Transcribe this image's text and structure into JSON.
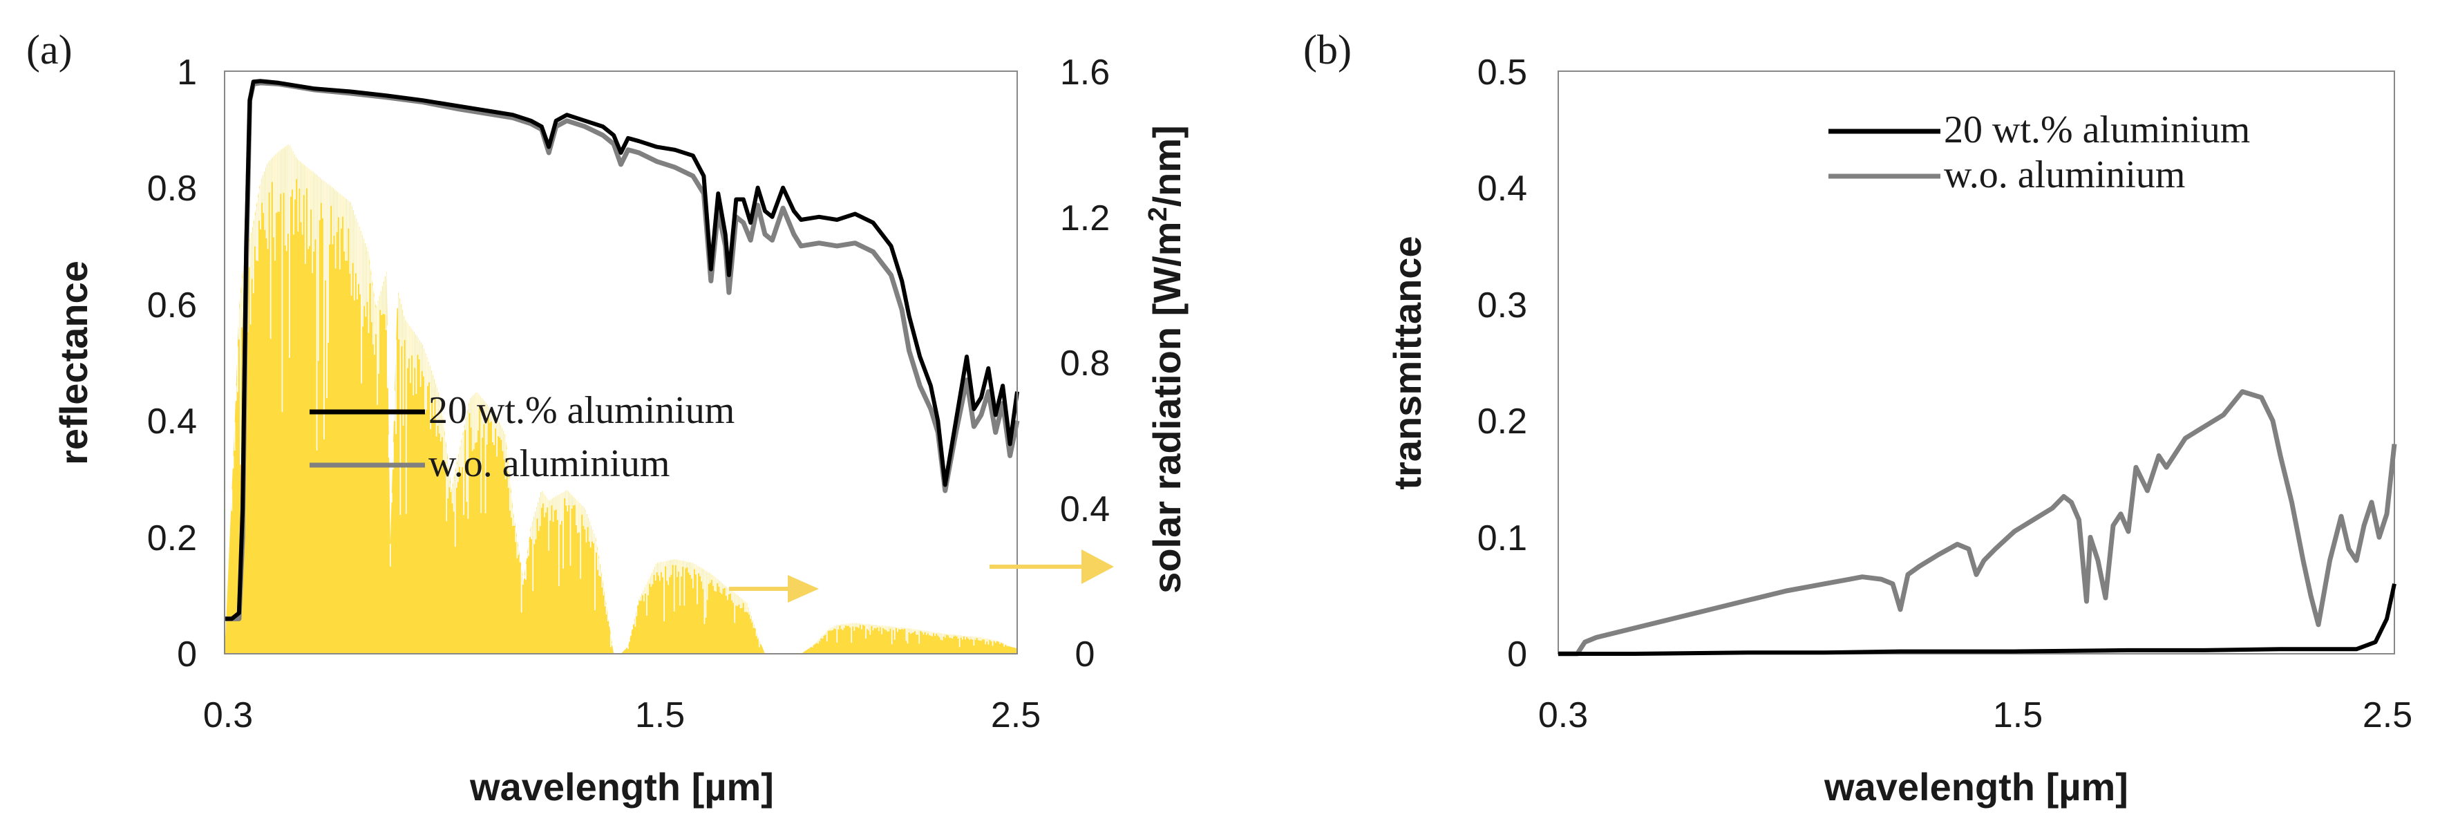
{
  "figure": {
    "background": "#ffffff",
    "colors": {
      "series_20wt": "#000000",
      "series_wo": "#808080",
      "solar": "#fedb3f",
      "arrow": "#f7d45d",
      "axis_text": "#1a1a1a",
      "frame": "#888888"
    }
  },
  "chart_data": [
    {
      "panel": "(a)",
      "type": "line",
      "xlabel": "wavelength [µm]",
      "ylabel": "reflectance",
      "y2label": "solar radiation [W/m²/nm]",
      "y2label_main": "solar radiation [W/m",
      "y2label_sup": "2",
      "y2label_tail": "/nm]",
      "xlim": [
        0.3,
        2.5
      ],
      "ylim": [
        0,
        1
      ],
      "y2lim": [
        0,
        1.6
      ],
      "xticks": [
        0.3,
        1.5,
        2.5
      ],
      "xtick_labels": [
        "0.3",
        "1.5",
        "2.5"
      ],
      "yticks": [
        0,
        0.2,
        0.4,
        0.6,
        0.8,
        1
      ],
      "ytick_labels": [
        "0",
        "0.2",
        "0.4",
        "0.6",
        "0.8",
        "1"
      ],
      "y2ticks": [
        0,
        0.4,
        0.8,
        1.2,
        1.6
      ],
      "y2tick_labels": [
        "0",
        "0.4",
        "0.8",
        "1.2",
        "1.6"
      ],
      "legend": [
        "20 wt.% aluminium",
        "w.o. aluminium"
      ],
      "legend_position": "center-left",
      "series": [
        {
          "name": "20 wt.% aluminium",
          "color": "#000000",
          "x": [
            0.3,
            0.32,
            0.34,
            0.35,
            0.36,
            0.37,
            0.38,
            0.4,
            0.45,
            0.55,
            0.65,
            0.75,
            0.85,
            0.95,
            1.05,
            1.1,
            1.15,
            1.18,
            1.2,
            1.22,
            1.25,
            1.3,
            1.35,
            1.38,
            1.4,
            1.42,
            1.45,
            1.5,
            1.55,
            1.6,
            1.63,
            1.65,
            1.67,
            1.69,
            1.7,
            1.72,
            1.74,
            1.76,
            1.78,
            1.8,
            1.82,
            1.85,
            1.88,
            1.9,
            1.95,
            2.0,
            2.05,
            2.1,
            2.15,
            2.18,
            2.2,
            2.23,
            2.26,
            2.28,
            2.3,
            2.33,
            2.36,
            2.38,
            2.4,
            2.42,
            2.44,
            2.46,
            2.48,
            2.5
          ],
          "y": [
            0.06,
            0.06,
            0.07,
            0.25,
            0.7,
            0.95,
            0.982,
            0.983,
            0.98,
            0.97,
            0.965,
            0.958,
            0.95,
            0.94,
            0.93,
            0.925,
            0.915,
            0.905,
            0.87,
            0.915,
            0.925,
            0.915,
            0.905,
            0.89,
            0.86,
            0.885,
            0.88,
            0.87,
            0.865,
            0.855,
            0.82,
            0.66,
            0.79,
            0.72,
            0.65,
            0.78,
            0.78,
            0.74,
            0.8,
            0.76,
            0.75,
            0.8,
            0.76,
            0.745,
            0.75,
            0.745,
            0.755,
            0.74,
            0.7,
            0.64,
            0.58,
            0.51,
            0.46,
            0.4,
            0.29,
            0.4,
            0.51,
            0.42,
            0.44,
            0.49,
            0.41,
            0.46,
            0.36,
            0.45
          ]
        },
        {
          "name": "w.o. aluminium",
          "color": "#808080",
          "x": [
            0.3,
            0.32,
            0.34,
            0.35,
            0.36,
            0.37,
            0.38,
            0.4,
            0.45,
            0.55,
            0.65,
            0.75,
            0.85,
            0.95,
            1.05,
            1.1,
            1.15,
            1.18,
            1.2,
            1.22,
            1.25,
            1.3,
            1.35,
            1.38,
            1.4,
            1.42,
            1.45,
            1.5,
            1.55,
            1.6,
            1.63,
            1.65,
            1.67,
            1.69,
            1.7,
            1.72,
            1.74,
            1.76,
            1.78,
            1.8,
            1.82,
            1.85,
            1.88,
            1.9,
            1.95,
            2.0,
            2.05,
            2.1,
            2.15,
            2.18,
            2.2,
            2.23,
            2.26,
            2.28,
            2.3,
            2.33,
            2.36,
            2.38,
            2.4,
            2.42,
            2.44,
            2.46,
            2.48,
            2.5
          ],
          "y": [
            0.06,
            0.06,
            0.06,
            0.2,
            0.66,
            0.95,
            0.978,
            0.98,
            0.978,
            0.968,
            0.962,
            0.955,
            0.947,
            0.935,
            0.925,
            0.92,
            0.91,
            0.9,
            0.86,
            0.905,
            0.915,
            0.905,
            0.89,
            0.875,
            0.84,
            0.865,
            0.86,
            0.845,
            0.835,
            0.82,
            0.79,
            0.64,
            0.76,
            0.7,
            0.62,
            0.75,
            0.74,
            0.71,
            0.77,
            0.72,
            0.71,
            0.765,
            0.72,
            0.7,
            0.705,
            0.7,
            0.705,
            0.69,
            0.65,
            0.59,
            0.52,
            0.46,
            0.42,
            0.38,
            0.28,
            0.38,
            0.47,
            0.39,
            0.41,
            0.45,
            0.38,
            0.43,
            0.34,
            0.4
          ]
        },
        {
          "name": "solar radiation",
          "color": "#fedb3f",
          "axis": "y2",
          "style": "filled-spiky",
          "x": [
            0.3,
            0.31,
            0.32,
            0.33,
            0.34,
            0.35,
            0.36,
            0.38,
            0.4,
            0.42,
            0.45,
            0.48,
            0.5,
            0.55,
            0.6,
            0.65,
            0.7,
            0.72,
            0.75,
            0.76,
            0.78,
            0.8,
            0.85,
            0.9,
            0.93,
            0.95,
            0.98,
            1.0,
            1.05,
            1.08,
            1.1,
            1.13,
            1.15,
            1.18,
            1.2,
            1.25,
            1.3,
            1.33,
            1.35,
            1.38,
            1.4,
            1.42,
            1.45,
            1.5,
            1.55,
            1.6,
            1.65,
            1.7,
            1.75,
            1.78,
            1.8,
            1.85,
            1.9,
            1.93,
            1.95,
            1.98,
            2.0,
            2.05,
            2.1,
            2.2,
            2.3,
            2.4,
            2.45,
            2.48,
            2.5
          ],
          "y": [
            0.0,
            0.22,
            0.45,
            0.68,
            0.95,
            1.05,
            1.1,
            1.18,
            1.3,
            1.35,
            1.38,
            1.4,
            1.36,
            1.32,
            1.28,
            1.24,
            1.1,
            0.95,
            1.05,
            0.3,
            1.0,
            0.92,
            0.85,
            0.7,
            0.45,
            0.55,
            0.7,
            0.72,
            0.66,
            0.6,
            0.4,
            0.2,
            0.35,
            0.45,
            0.42,
            0.45,
            0.4,
            0.32,
            0.2,
            0.0,
            0.0,
            0.02,
            0.15,
            0.25,
            0.26,
            0.25,
            0.22,
            0.18,
            0.14,
            0.05,
            0.0,
            0.0,
            0.0,
            0.02,
            0.04,
            0.07,
            0.08,
            0.085,
            0.08,
            0.07,
            0.055,
            0.045,
            0.035,
            0.02,
            0.015
          ]
        }
      ]
    },
    {
      "panel": "(b)",
      "type": "line",
      "xlabel": "wavelength [µm]",
      "ylabel": "transmittance",
      "xlim": [
        0.3,
        2.5
      ],
      "ylim": [
        0,
        0.5
      ],
      "xticks": [
        0.3,
        1.5,
        2.5
      ],
      "xtick_labels": [
        "0.3",
        "1.5",
        "2.5"
      ],
      "yticks": [
        0,
        0.1,
        0.2,
        0.3,
        0.4,
        0.5
      ],
      "ytick_labels": [
        "0",
        "0.1",
        "0.2",
        "0.3",
        "0.4",
        "0.5"
      ],
      "legend": [
        "20 wt.% aluminium",
        "w.o. aluminium"
      ],
      "legend_position": "top-right",
      "series": [
        {
          "name": "20 wt.% aluminium",
          "color": "#000000",
          "x": [
            0.3,
            0.5,
            0.8,
            1.0,
            1.2,
            1.5,
            1.8,
            2.0,
            2.2,
            2.4,
            2.45,
            2.48,
            2.5
          ],
          "y": [
            0.0,
            0.0,
            0.001,
            0.001,
            0.002,
            0.002,
            0.003,
            0.003,
            0.004,
            0.004,
            0.01,
            0.03,
            0.06
          ]
        },
        {
          "name": "w.o. aluminium",
          "color": "#808080",
          "x": [
            0.3,
            0.35,
            0.37,
            0.4,
            0.5,
            0.6,
            0.7,
            0.8,
            0.9,
            1.0,
            1.05,
            1.1,
            1.15,
            1.18,
            1.2,
            1.22,
            1.25,
            1.3,
            1.35,
            1.38,
            1.4,
            1.42,
            1.45,
            1.5,
            1.55,
            1.6,
            1.63,
            1.65,
            1.67,
            1.69,
            1.7,
            1.72,
            1.74,
            1.76,
            1.78,
            1.8,
            1.82,
            1.85,
            1.88,
            1.9,
            1.95,
            2.0,
            2.05,
            2.1,
            2.15,
            2.18,
            2.2,
            2.23,
            2.26,
            2.28,
            2.3,
            2.33,
            2.36,
            2.38,
            2.4,
            2.42,
            2.44,
            2.46,
            2.48,
            2.5
          ],
          "y": [
            0.0,
            0.0,
            0.01,
            0.014,
            0.022,
            0.03,
            0.038,
            0.046,
            0.054,
            0.06,
            0.063,
            0.066,
            0.064,
            0.06,
            0.038,
            0.068,
            0.075,
            0.085,
            0.094,
            0.09,
            0.068,
            0.08,
            0.09,
            0.105,
            0.115,
            0.125,
            0.135,
            0.13,
            0.115,
            0.045,
            0.1,
            0.08,
            0.048,
            0.11,
            0.12,
            0.105,
            0.16,
            0.14,
            0.17,
            0.16,
            0.185,
            0.195,
            0.205,
            0.225,
            0.22,
            0.2,
            0.17,
            0.13,
            0.08,
            0.05,
            0.025,
            0.08,
            0.118,
            0.09,
            0.08,
            0.11,
            0.13,
            0.1,
            0.12,
            0.18
          ]
        }
      ]
    }
  ]
}
